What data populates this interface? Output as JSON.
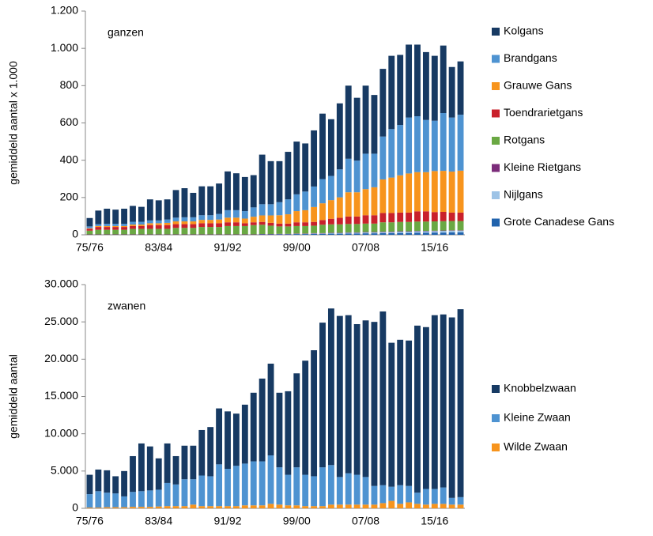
{
  "chart_data": [
    {
      "type": "bar",
      "stacked": true,
      "annotation": "ganzen",
      "y_label": "gemiddeld aantal x 1.000",
      "categories": [
        "75/76",
        null,
        null,
        null,
        null,
        null,
        null,
        null,
        "83/84",
        null,
        null,
        null,
        null,
        null,
        null,
        null,
        "91/92",
        null,
        null,
        null,
        null,
        null,
        null,
        null,
        "99/00",
        null,
        null,
        null,
        null,
        null,
        null,
        null,
        "07/08",
        null,
        null,
        null,
        null,
        null,
        null,
        null,
        "15/16",
        null,
        null,
        null
      ],
      "ylim": [
        0,
        1200
      ],
      "yticks": [
        0,
        200,
        400,
        600,
        800,
        {
          "value": 1000,
          "label": "1.000"
        },
        {
          "value": 1200,
          "label": "1.200"
        }
      ],
      "series": [
        {
          "name": "Grote Canadese Gans",
          "color": "#2163ad",
          "values": [
            0,
            0,
            0,
            0,
            0,
            0,
            0,
            0,
            0,
            0,
            0,
            0,
            0,
            0,
            0,
            0,
            0,
            0,
            0,
            0,
            2,
            2,
            3,
            3,
            4,
            4,
            5,
            5,
            6,
            6,
            7,
            7,
            8,
            8,
            9,
            9,
            10,
            10,
            11,
            11,
            12,
            12,
            13,
            13
          ]
        },
        {
          "name": "Nijlgans",
          "color": "#9dc3e6",
          "values": [
            0,
            0,
            0,
            0,
            0,
            0,
            0,
            0,
            0,
            0,
            0,
            0,
            0,
            0,
            0,
            0,
            0,
            0,
            0,
            0,
            0,
            0,
            0,
            0,
            1,
            1,
            2,
            2,
            3,
            3,
            4,
            4,
            5,
            5,
            6,
            6,
            7,
            7,
            8,
            8,
            8,
            9,
            9,
            9
          ]
        },
        {
          "name": "Kleine Rietgans",
          "color": "#7b2c7a",
          "values": [
            2,
            2,
            2,
            2,
            2,
            2,
            2,
            2,
            2,
            2,
            2,
            2,
            2,
            2,
            2,
            2,
            2,
            2,
            2,
            2,
            2,
            2,
            2,
            2,
            2,
            2,
            2,
            2,
            2,
            2,
            2,
            2,
            2,
            2,
            2,
            2,
            2,
            2,
            2,
            2,
            2,
            2,
            2,
            2
          ]
        },
        {
          "name": "Rotgans",
          "color": "#6aa843",
          "values": [
            20,
            25,
            25,
            25,
            25,
            30,
            30,
            30,
            30,
            30,
            35,
            35,
            35,
            40,
            40,
            40,
            45,
            45,
            45,
            50,
            50,
            45,
            40,
            40,
            40,
            40,
            40,
            45,
            45,
            45,
            45,
            45,
            45,
            45,
            50,
            50,
            50,
            50,
            50,
            50,
            50,
            50,
            50,
            50
          ]
        },
        {
          "name": "Toendrarietgans",
          "color": "#c9202b",
          "values": [
            10,
            15,
            15,
            15,
            15,
            15,
            15,
            20,
            20,
            20,
            20,
            20,
            20,
            20,
            20,
            20,
            20,
            20,
            15,
            15,
            15,
            15,
            15,
            15,
            20,
            20,
            20,
            25,
            30,
            35,
            40,
            40,
            45,
            45,
            50,
            50,
            50,
            50,
            55,
            55,
            50,
            50,
            45,
            45
          ]
        },
        {
          "name": "Grauwe Gans",
          "color": "#f7941d",
          "values": [
            3,
            5,
            5,
            5,
            5,
            8,
            8,
            10,
            10,
            12,
            15,
            15,
            15,
            18,
            18,
            20,
            25,
            25,
            25,
            30,
            35,
            40,
            45,
            50,
            60,
            65,
            80,
            90,
            100,
            110,
            130,
            130,
            140,
            150,
            180,
            190,
            200,
            210,
            210,
            210,
            220,
            220,
            220,
            225
          ]
        },
        {
          "name": "Brandgans",
          "color": "#4e93d1",
          "values": [
            10,
            10,
            12,
            12,
            12,
            15,
            15,
            15,
            15,
            18,
            20,
            22,
            22,
            25,
            25,
            30,
            40,
            40,
            40,
            50,
            60,
            60,
            70,
            80,
            90,
            100,
            110,
            130,
            130,
            150,
            180,
            170,
            190,
            180,
            230,
            260,
            270,
            300,
            300,
            280,
            270,
            310,
            290,
            300
          ]
        },
        {
          "name": "Kolgans",
          "color": "#173a63",
          "values": [
            45,
            73,
            81,
            76,
            81,
            85,
            80,
            113,
            108,
            108,
            148,
            156,
            131,
            155,
            155,
            163,
            208,
            198,
            183,
            173,
            266,
            231,
            220,
            255,
            283,
            258,
            301,
            351,
            304,
            354,
            392,
            337,
            365,
            315,
            363,
            393,
            376,
            391,
            384,
            364,
            348,
            362,
            271,
            286
          ]
        }
      ]
    },
    {
      "type": "bar",
      "stacked": true,
      "annotation": "zwanen",
      "y_label": "gemiddeld aantal",
      "categories": [
        "75/76",
        null,
        null,
        null,
        null,
        null,
        null,
        null,
        "83/84",
        null,
        null,
        null,
        null,
        null,
        null,
        null,
        "91/92",
        null,
        null,
        null,
        null,
        null,
        null,
        null,
        "99/00",
        null,
        null,
        null,
        null,
        null,
        null,
        null,
        "07/08",
        null,
        null,
        null,
        null,
        null,
        null,
        null,
        "15/16",
        null,
        null,
        null
      ],
      "ylim": [
        0,
        30000
      ],
      "yticks": [
        0,
        {
          "value": 5000,
          "label": "5.000"
        },
        {
          "value": 10000,
          "label": "10.000"
        },
        {
          "value": 15000,
          "label": "15.000"
        },
        {
          "value": 20000,
          "label": "20.000"
        },
        {
          "value": 25000,
          "label": "25.000"
        },
        {
          "value": 30000,
          "label": "30.000"
        }
      ],
      "series": [
        {
          "name": "Wilde Zwaan",
          "color": "#f7941d",
          "values": [
            100,
            100,
            150,
            150,
            150,
            200,
            200,
            200,
            250,
            300,
            300,
            300,
            500,
            300,
            300,
            300,
            300,
            300,
            400,
            400,
            400,
            600,
            500,
            400,
            400,
            300,
            300,
            300,
            500,
            500,
            500,
            500,
            500,
            500,
            700,
            1000,
            600,
            800,
            600,
            500,
            600,
            600,
            500,
            500
          ]
        },
        {
          "name": "Kleine Zwaan",
          "color": "#4e93d1",
          "values": [
            1800,
            2200,
            1950,
            1850,
            1450,
            2000,
            2100,
            2200,
            2250,
            3100,
            2900,
            3600,
            3400,
            4100,
            4000,
            5600,
            5000,
            5400,
            5600,
            5900,
            5900,
            6500,
            5000,
            4100,
            5100,
            4200,
            4000,
            5200,
            5300,
            3700,
            4200,
            4000,
            3700,
            2500,
            2400,
            1900,
            2500,
            2200,
            1500,
            2100,
            2000,
            2200,
            900,
            1000
          ]
        },
        {
          "name": "Knobbelzwaan",
          "color": "#173a63",
          "values": [
            2600,
            2900,
            3000,
            2300,
            3400,
            4800,
            6400,
            5900,
            4200,
            5300,
            3800,
            4500,
            4500,
            6100,
            6600,
            7500,
            7700,
            7000,
            7900,
            9200,
            11100,
            12300,
            10000,
            11200,
            12600,
            15300,
            16900,
            19400,
            21000,
            21600,
            21200,
            20200,
            21000,
            22000,
            23300,
            19300,
            19500,
            19500,
            22400,
            21700,
            23300,
            23200,
            24200,
            25200
          ]
        }
      ]
    }
  ]
}
